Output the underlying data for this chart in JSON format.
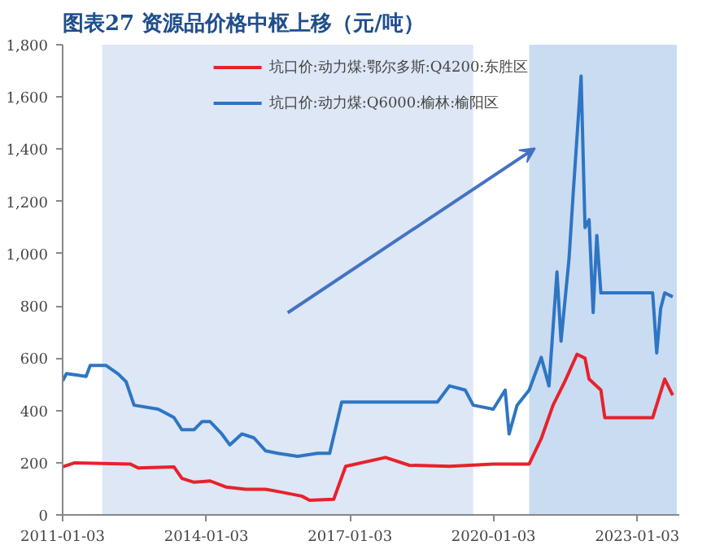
{
  "chart_data": {
    "type": "line",
    "title": "图表27 资源品价格中枢上移（元/吨）",
    "xlim": [
      "2011-01-03",
      "2023-11-20"
    ],
    "xticks": [
      "2011-01-03",
      "2014-01-03",
      "2017-01-03",
      "2020-01-03",
      "2023-01-03"
    ],
    "ylim": [
      0,
      1800
    ],
    "yticks": [
      {
        "value": 0,
        "label": "0"
      },
      {
        "value": 200,
        "label": "200"
      },
      {
        "value": 400,
        "label": "400"
      },
      {
        "value": 600,
        "label": "600"
      },
      {
        "value": 800,
        "label": "800"
      },
      {
        "value": 1000,
        "label": "1,000"
      },
      {
        "value": 1200,
        "label": "1,200"
      },
      {
        "value": 1400,
        "label": "1,400"
      },
      {
        "value": 1600,
        "label": "1,600"
      },
      {
        "value": 1800,
        "label": "1,800"
      }
    ],
    "grid": false,
    "legend": "top",
    "marker": "none",
    "line_style": "solid",
    "bands": [
      {
        "axis": "x",
        "from": "2011-11",
        "to": "2019-08",
        "color": "#dde7f5"
      },
      {
        "axis": "x",
        "from": "2020-10",
        "to": "2023-11",
        "color": "#cadcf1"
      }
    ],
    "series": [
      {
        "name": "坑口价:动力煤:鄂尔多斯:Q4200:东胜区",
        "color": "#e8212b",
        "x": [
          "2011-01-03",
          "2011-04",
          "2012-06",
          "2012-08",
          "2013-05",
          "2013-07",
          "2013-10",
          "2014-02",
          "2014-06",
          "2014-11",
          "2015-04",
          "2015-07",
          "2016-01",
          "2016-03",
          "2016-09",
          "2016-12",
          "2017-10",
          "2018-04",
          "2019-02",
          "2020-01",
          "2020-10",
          "2021-01",
          "2021-04",
          "2021-07",
          "2021-10",
          "2021-12",
          "2022-01",
          "2022-04",
          "2022-05",
          "2023-05",
          "2023-08",
          "2023-10"
        ],
        "values": [
          184,
          199,
          195,
          180,
          184,
          140,
          125,
          130,
          107,
          98,
          98,
          90,
          72,
          56,
          60,
          186,
          220,
          190,
          186,
          195,
          195,
          292,
          420,
          512,
          615,
          600,
          520,
          478,
          372,
          372,
          520,
          458
        ]
      },
      {
        "name": "坑口价:动力煤:Q6000:榆林:榆阳区",
        "color": "#2e75c4",
        "x": [
          "2011-01-03",
          "2011-02",
          "2011-07",
          "2011-08",
          "2011-12",
          "2012-03",
          "2012-05",
          "2012-07",
          "2013-01",
          "2013-05",
          "2013-07",
          "2013-10",
          "2013-12",
          "2014-02",
          "2014-05",
          "2014-07",
          "2014-10",
          "2015-01",
          "2015-04",
          "2015-07",
          "2015-12",
          "2016-05",
          "2016-08",
          "2016-11",
          "2018-11",
          "2019-02",
          "2019-06",
          "2019-08",
          "2020-01",
          "2020-04",
          "2020-05",
          "2020-07",
          "2020-10",
          "2021-01",
          "2021-03",
          "2021-05",
          "2021-06",
          "2021-08",
          "2021-09",
          "2021-11",
          "2021-12",
          "2022-01",
          "2022-02",
          "2022-03",
          "2022-04",
          "2023-05",
          "2023-06",
          "2023-07",
          "2023-08",
          "2023-10"
        ],
        "values": [
          513,
          541,
          530,
          572,
          572,
          540,
          510,
          420,
          405,
          373,
          326,
          326,
          357,
          357,
          310,
          268,
          310,
          295,
          245,
          236,
          224,
          236,
          236,
          432,
          432,
          494,
          478,
          420,
          405,
          478,
          310,
          420,
          478,
          603,
          494,
          930,
          665,
          980,
          1225,
          1680,
          1100,
          1130,
          775,
          1070,
          850,
          850,
          620,
          790,
          850,
          835
        ]
      }
    ]
  }
}
